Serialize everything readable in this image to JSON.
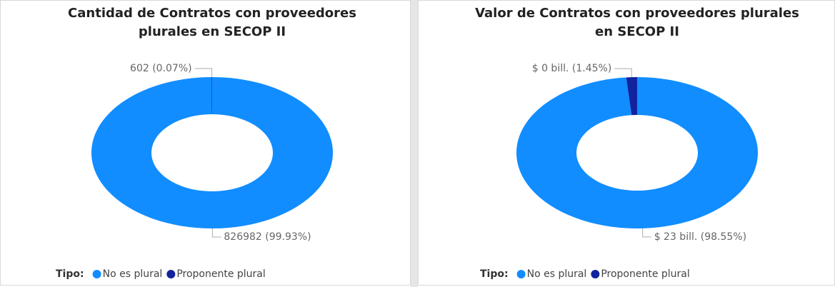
{
  "chart_data": [
    {
      "type": "donut",
      "title": "Cantidad de Contratos con proveedores plurales en SECOP II",
      "categories": [
        "No es plural",
        "Proponente plural"
      ],
      "values": [
        826982,
        602
      ],
      "value_labels": [
        "826982 (99.93%)",
        "602 (0.07%)"
      ],
      "colors": [
        "#118DFF",
        "#12239E"
      ],
      "legend_title": "Tipo:"
    },
    {
      "type": "donut",
      "title": "Valor de Contratos con proveedores plurales en SECOP II",
      "categories": [
        "No es plural",
        "Proponente plural"
      ],
      "values": [
        98.55,
        1.45
      ],
      "value_labels": [
        "$ 23 bill. (98.55%)",
        "$ 0 bill. (1.45%)"
      ],
      "colors": [
        "#118DFF",
        "#12239E"
      ],
      "legend_title": "Tipo:"
    }
  ]
}
